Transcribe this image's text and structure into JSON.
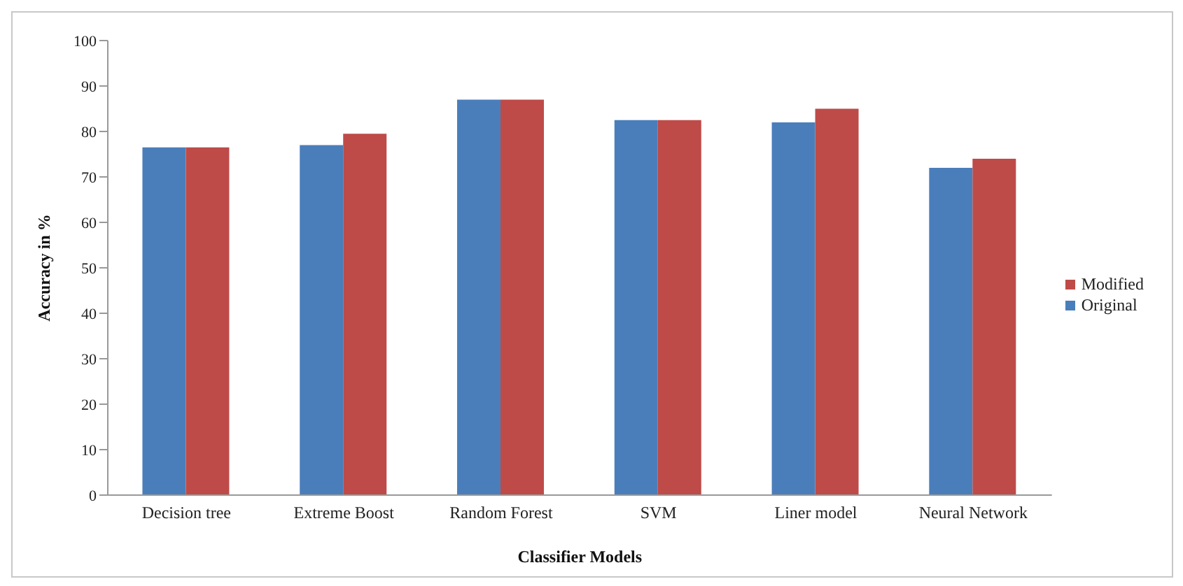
{
  "chart_data": {
    "type": "bar",
    "xlabel": "Classifier Models",
    "ylabel": "Accuracy in %",
    "categories": [
      "Decision tree",
      "Extreme Boost",
      "Random Forest",
      "SVM",
      "Liner model",
      "Neural Network"
    ],
    "series": [
      {
        "name": "Original",
        "color": "#4a7ebb",
        "values": [
          76.5,
          77,
          87,
          82.5,
          82,
          72
        ]
      },
      {
        "name": "Modified",
        "color": "#be4b48",
        "values": [
          76.5,
          79.5,
          87,
          82.5,
          85,
          74
        ]
      }
    ],
    "ylim": [
      0,
      100
    ],
    "yticks": [
      0,
      10,
      20,
      30,
      40,
      50,
      60,
      70,
      80,
      90,
      100
    ],
    "grid": false,
    "legend": "right"
  }
}
